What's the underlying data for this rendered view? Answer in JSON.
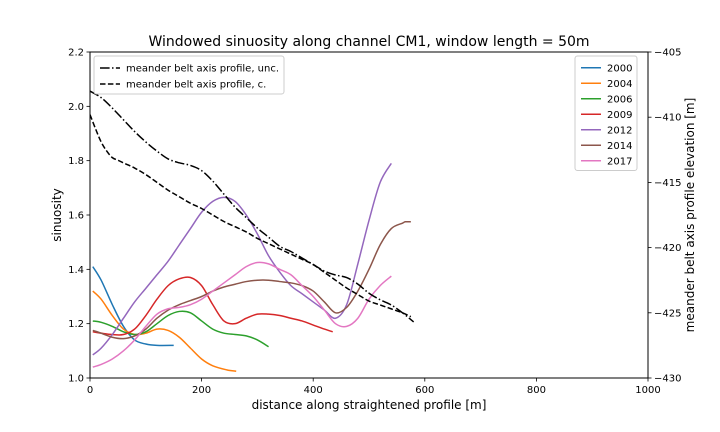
{
  "chart_data": {
    "type": "line",
    "title": "Windowed sinuosity along channel CM1, window length = 50m",
    "xlabel": "distance along straightened profile [m]",
    "ylabel": "sinuosity",
    "y2label": "meander belt axis profile elevation [m]",
    "xlim": [
      0,
      1000
    ],
    "ylim": [
      1.0,
      2.2
    ],
    "y2lim": [
      -430,
      -405
    ],
    "xticks": [
      0,
      200,
      400,
      600,
      800,
      1000
    ],
    "yticks": [
      1.0,
      1.2,
      1.4,
      1.6,
      1.8,
      2.0,
      2.2
    ],
    "y2ticks": [
      -430,
      -425,
      -420,
      -415,
      -410,
      -405
    ],
    "xtick_labels": [
      "0",
      "200",
      "400",
      "600",
      "800",
      "1000"
    ],
    "ytick_labels": [
      "1.0",
      "1.2",
      "1.4",
      "1.6",
      "1.8",
      "2.0",
      "2.2"
    ],
    "y2tick_labels": [
      "−430",
      "−425",
      "−420",
      "−415",
      "−410",
      "−405"
    ],
    "grid": false,
    "legend_sinuosity_position": "upper right",
    "legend_profile_position": "upper left",
    "series": [
      {
        "name": "2000",
        "color": "#1f77b4",
        "x": [
          5,
          20,
          40,
          60,
          80,
          100,
          120,
          150
        ],
        "y": [
          1.41,
          1.36,
          1.27,
          1.19,
          1.14,
          1.125,
          1.12,
          1.12
        ]
      },
      {
        "name": "2004",
        "color": "#ff7f0e",
        "x": [
          5,
          20,
          40,
          60,
          80,
          100,
          120,
          140,
          160,
          180,
          200,
          220,
          245,
          262
        ],
        "y": [
          1.32,
          1.29,
          1.23,
          1.18,
          1.16,
          1.165,
          1.18,
          1.175,
          1.15,
          1.11,
          1.07,
          1.045,
          1.03,
          1.025
        ]
      },
      {
        "name": "2006",
        "color": "#2ca02c",
        "x": [
          5,
          20,
          40,
          60,
          80,
          100,
          120,
          140,
          160,
          180,
          200,
          220,
          240,
          260,
          280,
          300,
          320
        ],
        "y": [
          1.21,
          1.205,
          1.19,
          1.17,
          1.16,
          1.17,
          1.2,
          1.23,
          1.245,
          1.24,
          1.21,
          1.18,
          1.165,
          1.16,
          1.155,
          1.14,
          1.115
        ]
      },
      {
        "name": "2009",
        "color": "#d62728",
        "x": [
          5,
          20,
          40,
          60,
          80,
          100,
          120,
          140,
          160,
          180,
          200,
          220,
          240,
          260,
          280,
          300,
          320,
          340,
          360,
          380,
          400,
          420,
          435
        ],
        "y": [
          1.17,
          1.165,
          1.16,
          1.16,
          1.18,
          1.23,
          1.29,
          1.34,
          1.365,
          1.37,
          1.34,
          1.27,
          1.21,
          1.2,
          1.22,
          1.235,
          1.235,
          1.23,
          1.22,
          1.21,
          1.195,
          1.18,
          1.17
        ]
      },
      {
        "name": "2012",
        "color": "#9467bd",
        "x": [
          5,
          20,
          40,
          60,
          80,
          100,
          120,
          140,
          160,
          180,
          200,
          220,
          240,
          260,
          280,
          300,
          320,
          340,
          360,
          380,
          400,
          420,
          440,
          460,
          480,
          500,
          520,
          540
        ],
        "y": [
          1.085,
          1.11,
          1.16,
          1.22,
          1.28,
          1.33,
          1.38,
          1.43,
          1.49,
          1.55,
          1.61,
          1.65,
          1.665,
          1.65,
          1.6,
          1.53,
          1.45,
          1.39,
          1.34,
          1.31,
          1.28,
          1.25,
          1.22,
          1.27,
          1.42,
          1.58,
          1.72,
          1.79
        ]
      },
      {
        "name": "2014",
        "color": "#8c564b",
        "x": [
          5,
          20,
          40,
          60,
          80,
          100,
          120,
          140,
          160,
          180,
          200,
          220,
          240,
          260,
          280,
          300,
          320,
          340,
          360,
          380,
          400,
          420,
          440,
          460,
          480,
          500,
          520,
          540,
          560,
          565,
          575
        ],
        "y": [
          1.175,
          1.165,
          1.15,
          1.145,
          1.155,
          1.18,
          1.22,
          1.25,
          1.27,
          1.285,
          1.3,
          1.32,
          1.335,
          1.345,
          1.355,
          1.36,
          1.36,
          1.355,
          1.35,
          1.34,
          1.32,
          1.28,
          1.24,
          1.26,
          1.32,
          1.4,
          1.49,
          1.55,
          1.57,
          1.575,
          1.575
        ]
      },
      {
        "name": "2017",
        "color": "#e377c2",
        "x": [
          5,
          20,
          40,
          60,
          80,
          100,
          120,
          140,
          160,
          180,
          200,
          220,
          240,
          260,
          280,
          300,
          320,
          340,
          360,
          380,
          400,
          420,
          440,
          460,
          480,
          500,
          520,
          540
        ],
        "y": [
          1.04,
          1.05,
          1.07,
          1.1,
          1.14,
          1.19,
          1.235,
          1.255,
          1.26,
          1.27,
          1.29,
          1.32,
          1.35,
          1.38,
          1.41,
          1.425,
          1.42,
          1.4,
          1.38,
          1.34,
          1.3,
          1.25,
          1.2,
          1.19,
          1.22,
          1.29,
          1.34,
          1.375
        ]
      },
      {
        "name": "meander belt axis profile, unc.",
        "color": "#000000",
        "axis": "right",
        "style": "dashdot",
        "x": [
          0,
          20,
          40,
          60,
          80,
          100,
          120,
          140,
          160,
          180,
          200,
          220,
          240,
          260,
          280,
          300,
          320,
          340,
          360,
          380,
          400,
          420,
          440,
          460,
          480,
          500,
          520,
          540,
          560,
          580
        ],
        "y": [
          -408.0,
          -408.5,
          -409.3,
          -410.2,
          -411.1,
          -411.9,
          -412.6,
          -413.2,
          -413.5,
          -413.7,
          -414.1,
          -414.9,
          -415.9,
          -416.9,
          -417.7,
          -418.5,
          -419.2,
          -419.9,
          -420.3,
          -420.8,
          -421.3,
          -421.8,
          -422.1,
          -422.3,
          -422.8,
          -423.5,
          -424.0,
          -424.4,
          -425.0,
          -425.7
        ]
      },
      {
        "name": "meander belt axis profile, c.",
        "color": "#000000",
        "axis": "right",
        "style": "dashed",
        "x": [
          0,
          10,
          20,
          30,
          40,
          50,
          60,
          80,
          100,
          120,
          140,
          160,
          180,
          200,
          220,
          240,
          260,
          280,
          300,
          320,
          340,
          360,
          380,
          400,
          420,
          440,
          460,
          480,
          500,
          520,
          540,
          560,
          575
        ],
        "y": [
          -409.8,
          -410.9,
          -411.9,
          -412.6,
          -413.1,
          -413.3,
          -413.5,
          -413.9,
          -414.4,
          -415.0,
          -415.6,
          -416.1,
          -416.6,
          -417.0,
          -417.5,
          -418.0,
          -418.4,
          -418.8,
          -419.3,
          -419.7,
          -420.1,
          -420.5,
          -420.9,
          -421.3,
          -421.9,
          -422.5,
          -423.1,
          -423.6,
          -424.1,
          -424.4,
          -424.7,
          -425.0,
          -425.3
        ]
      }
    ]
  }
}
